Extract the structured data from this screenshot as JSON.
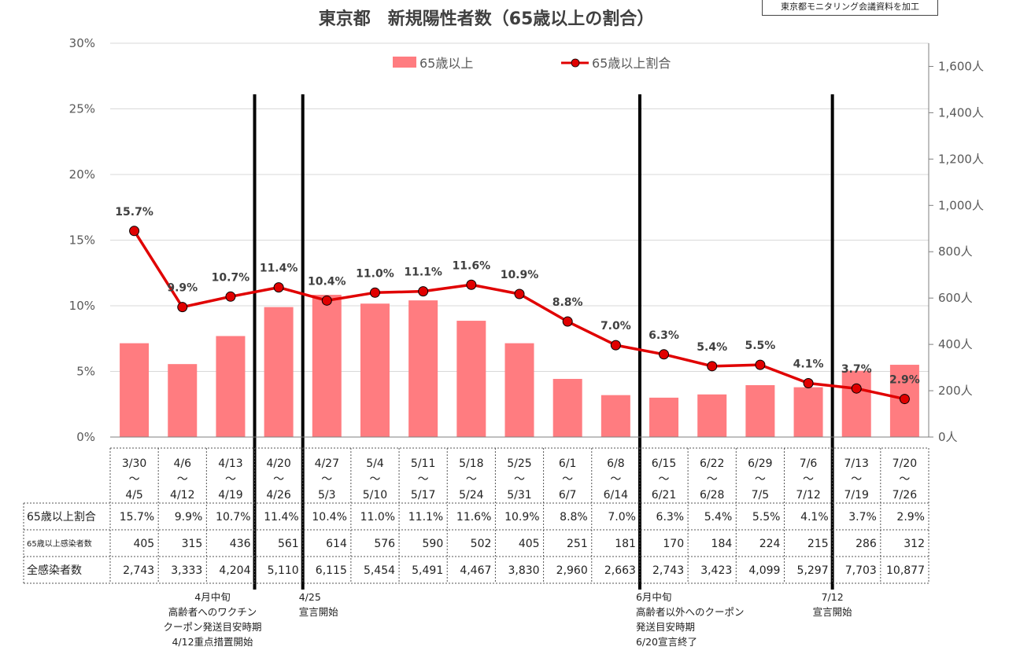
{
  "title": "東京都　新規陽性者数（65歳以上の割合）",
  "source_note": "東京都モニタリング会議資料を加工",
  "legend": {
    "bar_label": "65歳以上",
    "line_label": "65歳以上割合"
  },
  "colors": {
    "bar": "#ff7c80",
    "line": "#e00000",
    "grid": "#d9d9d9",
    "divider": "#000000"
  },
  "chart_data": {
    "type": "bar",
    "title": "東京都　新規陽性者数（65歳以上の割合）",
    "left_axis": {
      "ylim": [
        0,
        30
      ],
      "ticks": [
        "0%",
        "5%",
        "10%",
        "15%",
        "20%",
        "25%",
        "30%"
      ]
    },
    "right_axis": {
      "ylim": [
        0,
        1700
      ],
      "ticks": [
        "0人",
        "200人",
        "400人",
        "600人",
        "800人",
        "1,000人",
        "1,200人",
        "1,400人",
        "1,600人"
      ]
    },
    "grid": true,
    "legend_position": "top",
    "categories": [
      {
        "start": "3/30",
        "sep": "～",
        "end": "4/5"
      },
      {
        "start": "4/6",
        "sep": "～",
        "end": "4/12"
      },
      {
        "start": "4/13",
        "sep": "～",
        "end": "4/19"
      },
      {
        "start": "4/20",
        "sep": "～",
        "end": "4/26"
      },
      {
        "start": "4/27",
        "sep": "～",
        "end": "5/3"
      },
      {
        "start": "5/4",
        "sep": "～",
        "end": "5/10"
      },
      {
        "start": "5/11",
        "sep": "～",
        "end": "5/17"
      },
      {
        "start": "5/18",
        "sep": "～",
        "end": "5/24"
      },
      {
        "start": "5/25",
        "sep": "～",
        "end": "5/31"
      },
      {
        "start": "6/1",
        "sep": "～",
        "end": "6/7"
      },
      {
        "start": "6/8",
        "sep": "～",
        "end": "6/14"
      },
      {
        "start": "6/15",
        "sep": "～",
        "end": "6/21"
      },
      {
        "start": "6/22",
        "sep": "～",
        "end": "6/28"
      },
      {
        "start": "6/29",
        "sep": "～",
        "end": "7/5"
      },
      {
        "start": "7/6",
        "sep": "～",
        "end": "7/12"
      },
      {
        "start": "7/13",
        "sep": "～",
        "end": "7/19"
      },
      {
        "start": "7/20",
        "sep": "～",
        "end": "7/26"
      }
    ],
    "series": [
      {
        "name": "65歳以上",
        "type": "bar",
        "axis": "right",
        "values": [
          405,
          315,
          436,
          561,
          614,
          576,
          590,
          502,
          405,
          251,
          181,
          170,
          184,
          224,
          215,
          286,
          312
        ]
      },
      {
        "name": "65歳以上割合",
        "type": "line",
        "axis": "left",
        "values": [
          15.7,
          9.9,
          10.7,
          11.4,
          10.4,
          11.0,
          11.1,
          11.6,
          10.9,
          8.8,
          7.0,
          6.3,
          5.4,
          5.5,
          4.1,
          3.7,
          2.9
        ],
        "labels": [
          "15.7%",
          "9.9%",
          "10.7%",
          "11.4%",
          "10.4%",
          "11.0%",
          "11.1%",
          "11.6%",
          "10.9%",
          "8.8%",
          "7.0%",
          "6.3%",
          "5.4%",
          "5.5%",
          "4.1%",
          "3.7%",
          "2.9%"
        ]
      }
    ],
    "table": {
      "rows": [
        {
          "header": "65歳以上割合",
          "cells": [
            "15.7%",
            "9.9%",
            "10.7%",
            "11.4%",
            "10.4%",
            "11.0%",
            "11.1%",
            "11.6%",
            "10.9%",
            "8.8%",
            "7.0%",
            "6.3%",
            "5.4%",
            "5.5%",
            "4.1%",
            "3.7%",
            "2.9%"
          ]
        },
        {
          "header": "65歳以上感染者数",
          "cells": [
            "405",
            "315",
            "436",
            "561",
            "614",
            "576",
            "590",
            "502",
            "405",
            "251",
            "181",
            "170",
            "184",
            "224",
            "215",
            "286",
            "312"
          ]
        },
        {
          "header": "全感染者数",
          "cells": [
            "2,743",
            "3,333",
            "4,204",
            "5,110",
            "6,115",
            "5,454",
            "5,491",
            "4,467",
            "3,830",
            "2,960",
            "2,663",
            "2,743",
            "3,423",
            "4,099",
            "5,297",
            "7,703",
            "10,877"
          ]
        }
      ]
    },
    "annotations": [
      {
        "after_index": 2.5,
        "lines": [
          "4月中旬",
          "高齢者へのワクチン",
          "クーポン発送目安時期",
          "4/12重点措置開始"
        ],
        "align": "right"
      },
      {
        "after_index": 3.5,
        "lines": [
          "4/25",
          "宣言開始"
        ],
        "align": "left"
      },
      {
        "after_index": 10.5,
        "lines": [
          "6月中旬",
          "高齢者以外へのクーポン",
          "発送目安時期",
          "6/20宣言終了"
        ],
        "align": "left"
      },
      {
        "after_index": 14.5,
        "lines": [
          "7/12",
          "宣言開始"
        ],
        "align": "center"
      }
    ]
  }
}
